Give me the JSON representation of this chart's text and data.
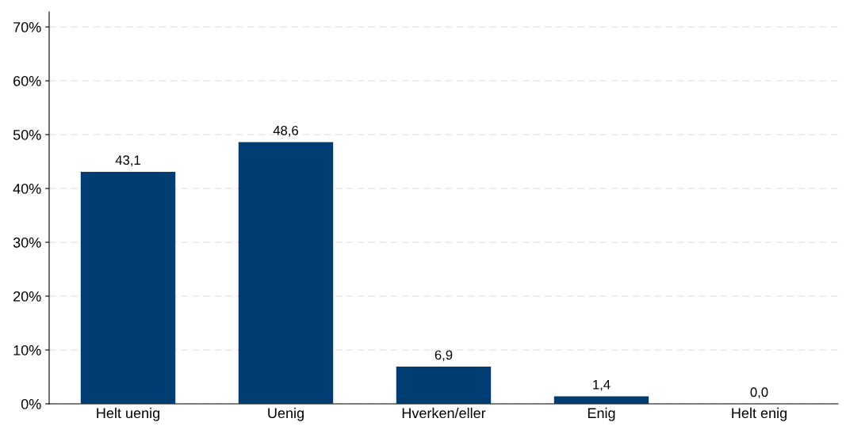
{
  "chart_data": {
    "type": "bar",
    "categories": [
      "Helt uenig",
      "Uenig",
      "Hverken/eller",
      "Enig",
      "Helt enig"
    ],
    "values": [
      43.1,
      48.6,
      6.9,
      1.4,
      0.0
    ],
    "value_labels": [
      "43,1",
      "48,6",
      "6,9",
      "1,4",
      "0,0"
    ],
    "color": "#003d73",
    "ylim": [
      0,
      72.8
    ],
    "yticks": [
      {
        "value": 0,
        "label": "0%"
      },
      {
        "value": 10,
        "label": "10%"
      },
      {
        "value": 20,
        "label": "20%"
      },
      {
        "value": 30,
        "label": "30%"
      },
      {
        "value": 40,
        "label": "40%"
      },
      {
        "value": 50,
        "label": "50%"
      },
      {
        "value": 60,
        "label": "60%"
      },
      {
        "value": 70,
        "label": "70%"
      }
    ],
    "grid": "y"
  }
}
